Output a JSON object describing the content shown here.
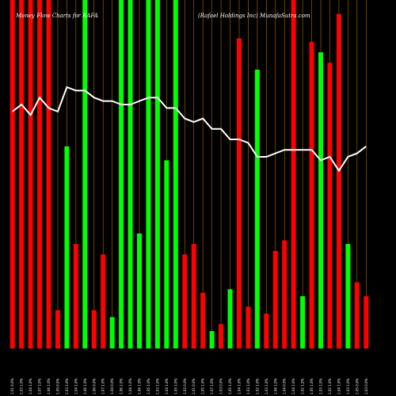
{
  "chart_data": {
    "type": "bar",
    "title_left": "Money Flow  Charts for RAFA",
    "title_right": "(Rafael Holdings Inc) MunafaSutra.com",
    "categories": [
      "1.01 0.0%",
      "1.03 1.0%",
      "1.04 1.0%",
      "1.07 1.0%",
      "1.06 1.0%",
      "1.05 0.0%",
      "1.03 1.0%",
      "1.04 1.0%",
      "1.06 1.0%",
      "1.06 0.0%",
      "1.07 1.0%",
      "1.04 0.0%",
      "1.06 1.0%",
      "1.04 1.0%",
      "1.06 1.0%",
      "1.05 1.0%",
      "1.03 1.0%",
      "1.04 1.0%",
      "1.05 1.0%",
      "1.02 0.0%",
      "1.01 0.0%",
      "1.05 1.0%",
      "1.07 1.0%",
      "1.03 0.0%",
      "1.05 1.0%",
      "1.04 1.0%",
      "1.03 1.0%",
      "1.02 1.0%",
      "1.03 1.0%",
      "1.06 1.0%",
      "1.04 0.0%",
      "1.04 1.0%",
      "1.02 1.0%",
      "1.05 1.0%",
      "1.03 1.0%",
      "1.02 1.0%",
      "1.04 1.0%",
      "1.03 1.0%",
      "1.05 0.0%",
      "1.03 0.0%"
    ],
    "flow_colors": [
      "red",
      "red",
      "red",
      "red",
      "red",
      "red",
      "green",
      "red",
      "green",
      "red",
      "red",
      "green",
      "green",
      "green",
      "green",
      "green",
      "green",
      "green",
      "green",
      "red",
      "red",
      "red",
      "green",
      "red",
      "green",
      "red",
      "red",
      "green",
      "red",
      "red",
      "red",
      "red",
      "green",
      "red",
      "green",
      "red",
      "red",
      "green",
      "red",
      "red"
    ],
    "values": [
      100,
      100,
      100,
      100,
      100,
      11,
      58,
      30,
      100,
      11,
      27,
      9,
      100,
      100,
      33,
      100,
      100,
      54,
      100,
      27,
      30,
      16,
      5,
      7,
      17,
      89,
      12,
      80,
      10,
      28,
      31,
      100,
      15,
      88,
      85,
      82,
      96,
      30,
      19,
      15
    ],
    "price_line": [
      68,
      70,
      67,
      72,
      69,
      68,
      75,
      74,
      74,
      72,
      71,
      71,
      70,
      70,
      71,
      72,
      72,
      69,
      69,
      66,
      65,
      66,
      63,
      63,
      60,
      60,
      59,
      55,
      55,
      56,
      57,
      57,
      57,
      57,
      54,
      55,
      51,
      55,
      56,
      58
    ],
    "ylim": [
      0,
      100
    ],
    "colors": {
      "background": "#000000",
      "green": "#00ff00",
      "red": "#ff0000",
      "line": "#ffffff",
      "grid": "#b36b00"
    },
    "grid": true
  }
}
